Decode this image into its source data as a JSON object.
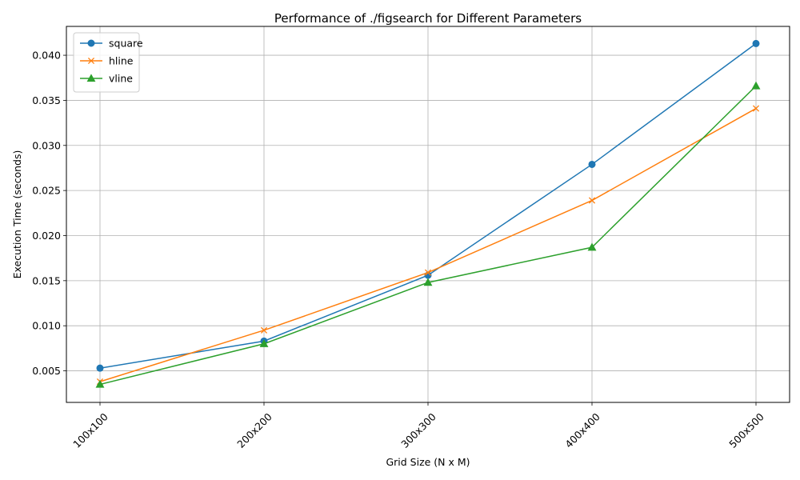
{
  "chart_data": {
    "type": "line",
    "title": "Performance of ./figsearch for Different Parameters",
    "xlabel": "Grid Size (N x M)",
    "ylabel": "Execution Time (seconds)",
    "categories": [
      "100x100",
      "200x200",
      "300x300",
      "400x400",
      "500x500"
    ],
    "ylim": [
      0.0015,
      0.0432
    ],
    "yticks": [
      0.005,
      0.01,
      0.015,
      0.02,
      0.025,
      0.03,
      0.035,
      0.04
    ],
    "ytick_labels": [
      "0.005",
      "0.010",
      "0.015",
      "0.020",
      "0.025",
      "0.030",
      "0.035",
      "0.040"
    ],
    "grid": true,
    "legend_position": "upper left",
    "series": [
      {
        "name": "square",
        "color": "#1f77b4",
        "marker": "circle",
        "values": [
          0.0053,
          0.0083,
          0.0156,
          0.0279,
          0.0413
        ]
      },
      {
        "name": "hline",
        "color": "#ff7f0e",
        "marker": "x",
        "values": [
          0.0038,
          0.0095,
          0.0159,
          0.0239,
          0.0341
        ]
      },
      {
        "name": "vline",
        "color": "#2ca02c",
        "marker": "triangle",
        "values": [
          0.0035,
          0.008,
          0.0148,
          0.0187,
          0.0366
        ]
      }
    ]
  }
}
